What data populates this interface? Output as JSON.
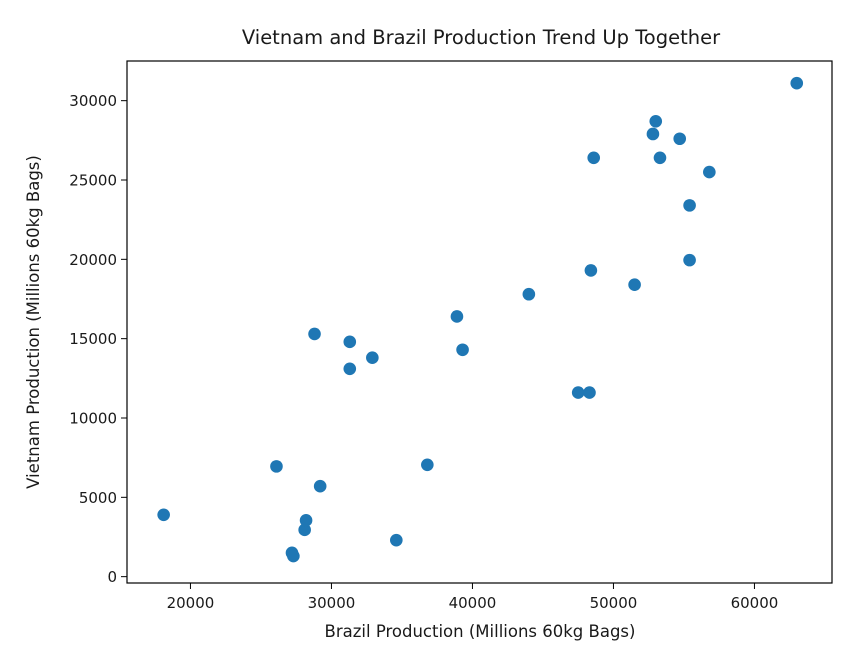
{
  "chart_data": {
    "type": "scatter",
    "title": "Vietnam and Brazil Production Trend Up Together",
    "xlabel": "Brazil Production (Millions 60kg Bags)",
    "ylabel": "Vietnam Production (Millions 60kg Bags)",
    "xlim": [
      15500,
      65500
    ],
    "ylim": [
      -400,
      32500
    ],
    "xticks": [
      20000,
      30000,
      40000,
      50000,
      60000
    ],
    "yticks": [
      0,
      5000,
      10000,
      15000,
      20000,
      25000,
      30000
    ],
    "xtick_labels": [
      "20000",
      "30000",
      "40000",
      "50000",
      "60000"
    ],
    "ytick_labels": [
      "0",
      "5000",
      "10000",
      "15000",
      "20000",
      "25000",
      "30000"
    ],
    "grid": false,
    "marker_color": "#1f77b4",
    "points": [
      {
        "x": 18100,
        "y": 3900
      },
      {
        "x": 26100,
        "y": 6950
      },
      {
        "x": 27200,
        "y": 1500
      },
      {
        "x": 27300,
        "y": 1300
      },
      {
        "x": 28100,
        "y": 2950
      },
      {
        "x": 28200,
        "y": 3550
      },
      {
        "x": 28800,
        "y": 15300
      },
      {
        "x": 29200,
        "y": 5700
      },
      {
        "x": 31300,
        "y": 14800
      },
      {
        "x": 31300,
        "y": 13100
      },
      {
        "x": 32900,
        "y": 13800
      },
      {
        "x": 34600,
        "y": 2300
      },
      {
        "x": 36800,
        "y": 7050
      },
      {
        "x": 38900,
        "y": 16400
      },
      {
        "x": 39300,
        "y": 14300
      },
      {
        "x": 44000,
        "y": 17800
      },
      {
        "x": 47500,
        "y": 11600
      },
      {
        "x": 48300,
        "y": 11600
      },
      {
        "x": 48400,
        "y": 19300
      },
      {
        "x": 48600,
        "y": 26400
      },
      {
        "x": 51500,
        "y": 18400
      },
      {
        "x": 52800,
        "y": 27900
      },
      {
        "x": 53000,
        "y": 28700
      },
      {
        "x": 53300,
        "y": 26400
      },
      {
        "x": 54700,
        "y": 27600
      },
      {
        "x": 55400,
        "y": 23400
      },
      {
        "x": 55400,
        "y": 19950
      },
      {
        "x": 56800,
        "y": 25500
      },
      {
        "x": 63000,
        "y": 31100
      }
    ]
  }
}
